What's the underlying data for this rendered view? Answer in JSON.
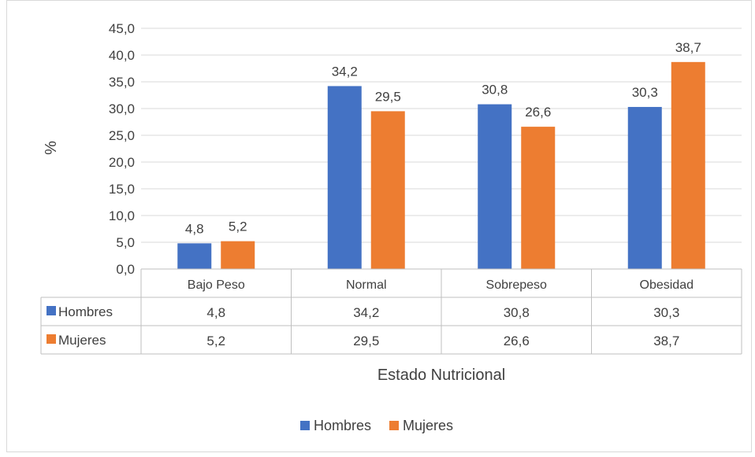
{
  "chart_data": {
    "type": "bar",
    "categories": [
      "Bajo Peso",
      "Normal",
      "Sobrepeso",
      "Obesidad"
    ],
    "series": [
      {
        "name": "Hombres",
        "values": [
          4.8,
          34.2,
          30.8,
          30.3
        ],
        "labels": [
          "4,8",
          "34,2",
          "30,8",
          "30,3"
        ],
        "color": "#4472c4"
      },
      {
        "name": "Mujeres",
        "values": [
          5.2,
          29.5,
          26.6,
          38.7
        ],
        "labels": [
          "5,2",
          "29,5",
          "26,6",
          "38,7"
        ],
        "color": "#ed7d31"
      }
    ],
    "ylabel": "%",
    "xlabel": "Estado Nutricional",
    "ylim": [
      0,
      45
    ],
    "yticks": [
      0,
      5,
      10,
      15,
      20,
      25,
      30,
      35,
      40,
      45
    ],
    "ytick_labels": [
      "0,0",
      "5,0",
      "10,0",
      "15,0",
      "20,0",
      "25,0",
      "30,0",
      "35,0",
      "40,0",
      "45,0"
    ],
    "grid": true,
    "legend_position": "bottom",
    "data_table": true
  }
}
